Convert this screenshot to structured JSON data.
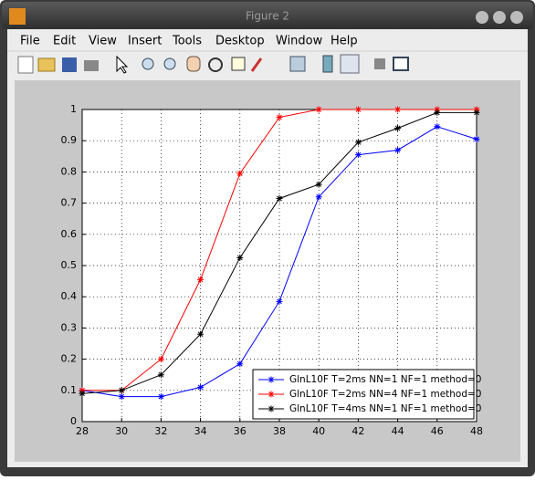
{
  "window": {
    "title": "Figure 2",
    "menu": [
      "File",
      "Edit",
      "View",
      "Insert",
      "Tools",
      "Desktop",
      "Window",
      "Help"
    ]
  },
  "chart_data": {
    "type": "line",
    "x": [
      28,
      30,
      32,
      34,
      36,
      38,
      40,
      42,
      44,
      46,
      48
    ],
    "xlim": [
      28,
      48
    ],
    "xticks": [
      28,
      30,
      32,
      34,
      36,
      38,
      40,
      42,
      44,
      46,
      48
    ],
    "ylim": [
      0,
      1
    ],
    "yticks": [
      0,
      0.1,
      0.2,
      0.3,
      0.4,
      0.5,
      0.6,
      0.7,
      0.8,
      0.9,
      1
    ],
    "grid": true,
    "legend": "lower right",
    "series": [
      {
        "name": "GlnL10F T=2ms NN=1 NF=1 method=0",
        "color": "#0000ff",
        "values": [
          0.1,
          0.08,
          0.08,
          0.11,
          0.185,
          0.385,
          0.72,
          0.855,
          0.87,
          0.945,
          0.905
        ]
      },
      {
        "name": "GlnL10F T=2ms NN=4 NF=1 method=0",
        "color": "#ff0000",
        "values": [
          0.1,
          0.1,
          0.2,
          0.455,
          0.795,
          0.975,
          1,
          1,
          1,
          1,
          1
        ]
      },
      {
        "name": "GlnL10F T=4ms NN=1 NF=1 method=0",
        "color": "#000000",
        "values": [
          0.09,
          0.1,
          0.15,
          0.28,
          0.525,
          0.715,
          0.76,
          0.895,
          0.94,
          0.99,
          0.99
        ]
      }
    ]
  }
}
